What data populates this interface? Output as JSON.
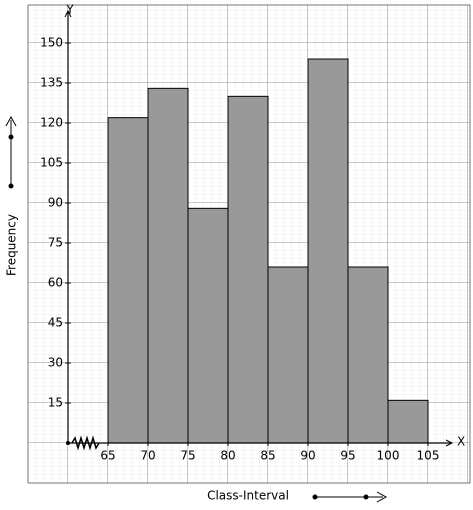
{
  "chart_data": {
    "type": "histogram",
    "x_axis_letter": "X",
    "y_axis_letter": "Y",
    "x_label": "Class-Interval",
    "y_label": "Frequency",
    "bins": [
      65,
      70,
      75,
      80,
      85,
      90,
      95,
      100,
      105
    ],
    "values": [
      122,
      133,
      88,
      130,
      66,
      144,
      66,
      16
    ],
    "color": "#999999",
    "xlim": [
      60,
      108
    ],
    "ylim": [
      0,
      162
    ],
    "xticks": [
      65,
      70,
      75,
      80,
      85,
      90,
      95,
      100,
      105
    ],
    "yticks": [
      15,
      30,
      45,
      60,
      75,
      90,
      105,
      120,
      135,
      150
    ]
  }
}
